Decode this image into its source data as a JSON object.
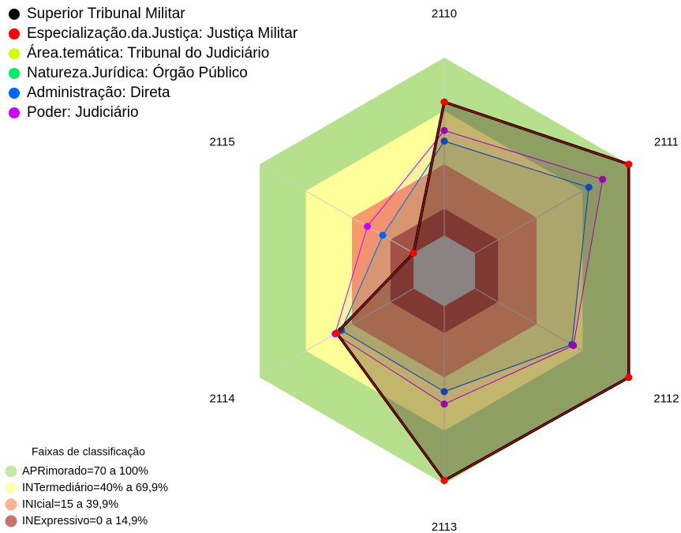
{
  "chart_data": {
    "type": "radar",
    "categories": [
      "2110",
      "2111",
      "2112",
      "2113",
      "2114",
      "2115"
    ],
    "rlim": [
      0,
      100
    ],
    "series": [
      {
        "name": "Superior Tribunal Militar",
        "color": "#000000",
        "values": [
          75,
          100,
          100,
          98,
          50,
          0
        ]
      },
      {
        "name": "Especialização.da.Justiça: Justiça Militar",
        "color": "#ff0000",
        "values": [
          75,
          100,
          100,
          98,
          50,
          0
        ]
      },
      {
        "name": "Área.temática: Tribunal do Judiciário",
        "color": "#ccff00",
        "values": [
          53,
          74,
          63,
          48,
          47,
          20
        ]
      },
      {
        "name": "Natureza.Jurídica: Órgão Público",
        "color": "#00ee66",
        "values": [
          53,
          74,
          63,
          48,
          47,
          20
        ]
      },
      {
        "name": "Administração: Direta",
        "color": "#0066ff",
        "values": [
          53,
          74,
          63,
          48,
          47,
          20
        ]
      },
      {
        "name": "Poder: Judiciário",
        "color": "#cc00ff",
        "values": [
          59,
          83,
          64,
          55,
          51,
          30
        ]
      }
    ],
    "bands_title": "Faixas de classificação",
    "bands": [
      {
        "label": "APRimorado=70 a 100%",
        "min": 70,
        "color": "#b6e08c"
      },
      {
        "label": "INTermediário=40% a 69,9%",
        "min": 40,
        "color": "#ffff99"
      },
      {
        "label": "INIcial=15 a 39,9%",
        "min": 15,
        "color": "#f59a68"
      },
      {
        "label": "INExpressivo=0 a 14,9%",
        "min": 0,
        "color": "#b54535"
      }
    ]
  }
}
